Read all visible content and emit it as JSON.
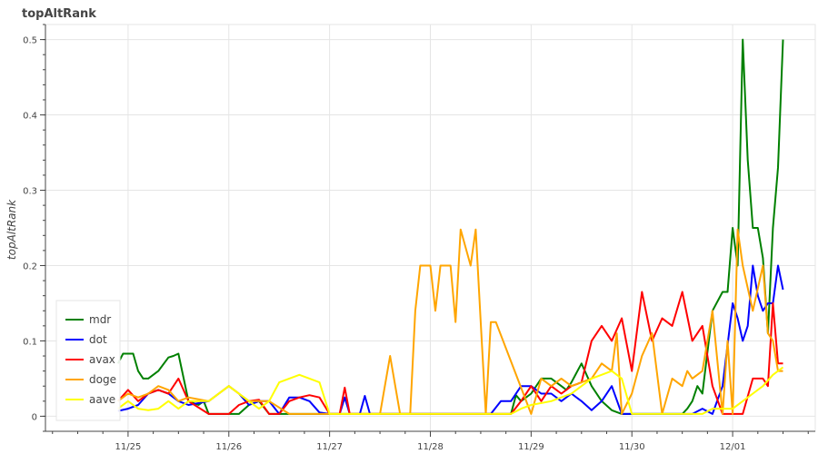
{
  "chart_data": {
    "type": "line",
    "title": "topAltRank",
    "xlabel": "",
    "ylabel": "topAltRank",
    "x_ticks": [
      "11/25",
      "11/26",
      "11/27",
      "11/28",
      "11/29",
      "11/30",
      "12/01"
    ],
    "xlim": [
      -0.82,
      6.82
    ],
    "ylim": [
      -0.02,
      0.52
    ],
    "y_ticks": [
      0,
      0.1,
      0.2,
      0.3,
      0.4,
      0.5
    ],
    "grid": true,
    "legend_position": "bottom-left",
    "series": [
      {
        "name": "mdr",
        "color": "#008000",
        "x": [
          -0.1,
          -0.05,
          0.0,
          0.05,
          0.1,
          0.15,
          0.2,
          0.3,
          0.4,
          0.45,
          0.5,
          0.6,
          0.7,
          0.75,
          0.8,
          0.9,
          1.0,
          1.1,
          1.2,
          1.3,
          1.4,
          1.5,
          1.7,
          2.0,
          2.5,
          3.0,
          3.5,
          3.7,
          3.8,
          3.85,
          3.9,
          4.0,
          4.1,
          4.2,
          4.3,
          4.35,
          4.4,
          4.5,
          4.6,
          4.7,
          4.8,
          4.9,
          5.0,
          5.5,
          5.55,
          5.6,
          5.65,
          5.7,
          5.8,
          5.9,
          5.95,
          6.0,
          6.05,
          6.1,
          6.15,
          6.2,
          6.25,
          6.3,
          6.35,
          6.4,
          6.45,
          6.5
        ],
        "y": [
          0.07,
          0.083,
          0.083,
          0.083,
          0.06,
          0.05,
          0.05,
          0.06,
          0.078,
          0.08,
          0.083,
          0.02,
          0.015,
          0.02,
          0.003,
          0.003,
          0.003,
          0.003,
          0.015,
          0.02,
          0.003,
          0.003,
          0.003,
          0.003,
          0.003,
          0.003,
          0.003,
          0.003,
          0.003,
          0.028,
          0.02,
          0.03,
          0.05,
          0.05,
          0.04,
          0.035,
          0.045,
          0.07,
          0.04,
          0.02,
          0.008,
          0.003,
          0.003,
          0.003,
          0.01,
          0.02,
          0.04,
          0.03,
          0.14,
          0.165,
          0.165,
          0.25,
          0.2,
          0.5,
          0.34,
          0.25,
          0.25,
          0.21,
          0.11,
          0.25,
          0.33,
          0.5
        ]
      },
      {
        "name": "dot",
        "color": "#0000ff",
        "x": [
          -0.1,
          0.0,
          0.1,
          0.2,
          0.3,
          0.4,
          0.5,
          0.6,
          0.8,
          0.9,
          1.0,
          1.1,
          1.2,
          1.3,
          1.4,
          1.5,
          1.6,
          1.7,
          1.8,
          1.9,
          2.0,
          2.1,
          2.15,
          2.2,
          2.3,
          2.35,
          2.4,
          3.0,
          3.5,
          3.6,
          3.7,
          3.8,
          3.9,
          4.0,
          4.1,
          4.2,
          4.3,
          4.4,
          4.5,
          4.6,
          4.7,
          4.8,
          4.9,
          5.0,
          5.5,
          5.6,
          5.7,
          5.8,
          5.9,
          6.0,
          6.05,
          6.1,
          6.15,
          6.2,
          6.25,
          6.3,
          6.35,
          6.4,
          6.45,
          6.5
        ],
        "y": [
          0.007,
          0.01,
          0.015,
          0.03,
          0.035,
          0.03,
          0.02,
          0.015,
          0.02,
          0.03,
          0.04,
          0.03,
          0.015,
          0.02,
          0.02,
          0.003,
          0.025,
          0.025,
          0.02,
          0.005,
          0.003,
          0.003,
          0.025,
          0.003,
          0.003,
          0.027,
          0.003,
          0.003,
          0.003,
          0.003,
          0.02,
          0.02,
          0.04,
          0.04,
          0.03,
          0.03,
          0.02,
          0.03,
          0.02,
          0.008,
          0.02,
          0.04,
          0.003,
          0.003,
          0.003,
          0.003,
          0.01,
          0.003,
          0.04,
          0.15,
          0.13,
          0.1,
          0.12,
          0.2,
          0.16,
          0.14,
          0.15,
          0.15,
          0.2,
          0.168
        ]
      },
      {
        "name": "avax",
        "color": "#ff0000",
        "x": [
          -0.1,
          0.0,
          0.1,
          0.2,
          0.3,
          0.4,
          0.5,
          0.6,
          0.8,
          1.0,
          1.1,
          1.2,
          1.3,
          1.4,
          1.5,
          1.6,
          1.7,
          1.8,
          1.9,
          2.0,
          2.1,
          2.15,
          2.2,
          3.0,
          3.5,
          3.8,
          3.9,
          4.0,
          4.1,
          4.2,
          4.3,
          4.4,
          4.5,
          4.6,
          4.7,
          4.8,
          4.9,
          5.0,
          5.1,
          5.2,
          5.3,
          5.4,
          5.5,
          5.6,
          5.7,
          5.8,
          5.9,
          6.0,
          6.1,
          6.2,
          6.3,
          6.35,
          6.4,
          6.45,
          6.5
        ],
        "y": [
          0.02,
          0.035,
          0.02,
          0.03,
          0.035,
          0.03,
          0.05,
          0.02,
          0.003,
          0.003,
          0.015,
          0.02,
          0.022,
          0.003,
          0.003,
          0.02,
          0.025,
          0.028,
          0.025,
          0.003,
          0.003,
          0.038,
          0.003,
          0.003,
          0.003,
          0.003,
          0.02,
          0.04,
          0.02,
          0.04,
          0.03,
          0.04,
          0.045,
          0.1,
          0.12,
          0.1,
          0.13,
          0.06,
          0.165,
          0.1,
          0.13,
          0.12,
          0.165,
          0.1,
          0.12,
          0.04,
          0.003,
          0.003,
          0.003,
          0.05,
          0.05,
          0.04,
          0.15,
          0.07,
          0.07
        ]
      },
      {
        "name": "doge",
        "color": "#ffa500",
        "x": [
          -0.1,
          0.0,
          0.1,
          0.2,
          0.3,
          0.4,
          0.5,
          0.6,
          0.8,
          1.0,
          1.2,
          1.4,
          1.6,
          2.0,
          2.2,
          2.3,
          2.4,
          2.5,
          2.6,
          2.7,
          2.8,
          2.85,
          2.9,
          3.0,
          3.05,
          3.1,
          3.15,
          3.2,
          3.25,
          3.3,
          3.4,
          3.45,
          3.5,
          3.55,
          3.6,
          3.65,
          4.0,
          4.1,
          4.2,
          4.3,
          4.4,
          4.5,
          4.6,
          4.7,
          4.8,
          4.85,
          4.9,
          5.0,
          5.1,
          5.2,
          5.3,
          5.4,
          5.5,
          5.55,
          5.6,
          5.7,
          5.8,
          5.9,
          5.95,
          6.0,
          6.05,
          6.1,
          6.2,
          6.3,
          6.35,
          6.4,
          6.45,
          6.5
        ],
        "y": [
          0.02,
          0.03,
          0.025,
          0.03,
          0.04,
          0.035,
          0.02,
          0.025,
          0.02,
          0.04,
          0.02,
          0.02,
          0.003,
          0.003,
          0.003,
          0.003,
          0.003,
          0.003,
          0.08,
          0.003,
          0.003,
          0.14,
          0.2,
          0.2,
          0.14,
          0.2,
          0.2,
          0.2,
          0.125,
          0.248,
          0.2,
          0.248,
          0.125,
          0.003,
          0.125,
          0.125,
          0.003,
          0.05,
          0.04,
          0.05,
          0.04,
          0.045,
          0.05,
          0.07,
          0.06,
          0.11,
          0.003,
          0.03,
          0.08,
          0.11,
          0.003,
          0.05,
          0.04,
          0.06,
          0.05,
          0.06,
          0.14,
          0.003,
          0.1,
          0.003,
          0.248,
          0.2,
          0.14,
          0.2,
          0.11,
          0.1,
          0.06,
          0.06
        ]
      },
      {
        "name": "aave",
        "color": "#ffff00",
        "x": [
          -0.1,
          0.0,
          0.1,
          0.2,
          0.3,
          0.4,
          0.5,
          0.6,
          0.8,
          1.0,
          1.2,
          1.3,
          1.4,
          1.5,
          1.6,
          1.7,
          1.8,
          1.9,
          2.0,
          2.5,
          3.0,
          3.5,
          3.8,
          3.9,
          4.0,
          4.2,
          4.4,
          4.6,
          4.8,
          4.9,
          5.0,
          5.5,
          5.6,
          5.7,
          5.8,
          5.9,
          6.0,
          6.1,
          6.2,
          6.3,
          6.4,
          6.5
        ],
        "y": [
          0.01,
          0.02,
          0.01,
          0.008,
          0.01,
          0.02,
          0.01,
          0.02,
          0.02,
          0.04,
          0.02,
          0.01,
          0.02,
          0.045,
          0.05,
          0.055,
          0.05,
          0.045,
          0.003,
          0.003,
          0.003,
          0.003,
          0.003,
          0.01,
          0.015,
          0.02,
          0.03,
          0.05,
          0.06,
          0.05,
          0.003,
          0.003,
          0.003,
          0.003,
          0.01,
          0.01,
          0.01,
          0.02,
          0.03,
          0.04,
          0.055,
          0.065
        ]
      }
    ]
  }
}
